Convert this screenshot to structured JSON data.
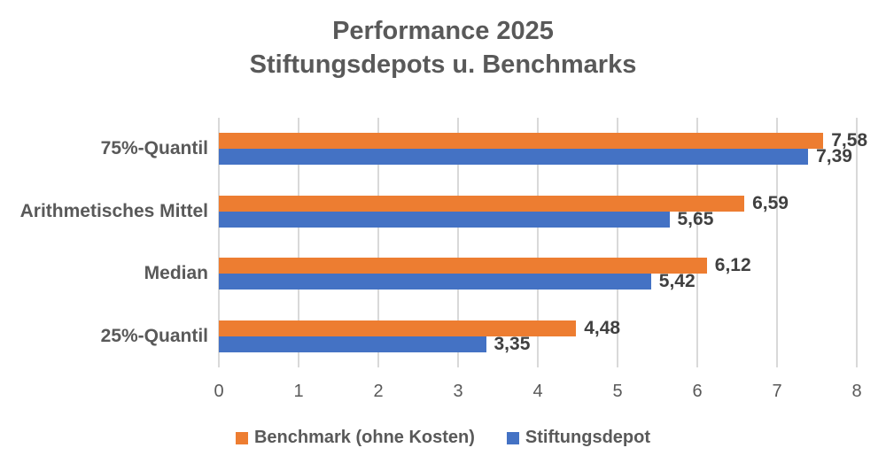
{
  "title": {
    "line1": "Performance 2025",
    "line2": "Stiftungsdepots u. Benchmarks"
  },
  "chart_data": {
    "type": "bar",
    "orientation": "horizontal",
    "title": "Performance 2025 Stiftungsdepots u. Benchmarks",
    "categories": [
      "75%-Quantil",
      "Arithmetisches Mittel",
      "Median",
      "25%-Quantil"
    ],
    "series": [
      {
        "name": "Benchmark (ohne Kosten)",
        "color": "#ED7D31",
        "values": [
          7.58,
          6.59,
          6.12,
          4.48
        ],
        "labels": [
          "7,58",
          "6,59",
          "6,12",
          "4,48"
        ]
      },
      {
        "name": "Stiftungsdepot",
        "color": "#4472C4",
        "values": [
          7.39,
          5.65,
          5.42,
          3.35
        ],
        "labels": [
          "7,39",
          "5,65",
          "5,42",
          "3,35"
        ]
      }
    ],
    "xlim": [
      0,
      8
    ],
    "x_ticks": [
      "0",
      "1",
      "2",
      "3",
      "4",
      "5",
      "6",
      "7",
      "8"
    ],
    "grid": true,
    "legend_position": "bottom"
  },
  "colors": {
    "text": "#595959",
    "value_label": "#404040",
    "gridline": "#D9D9D9",
    "background": "#FFFFFF"
  }
}
